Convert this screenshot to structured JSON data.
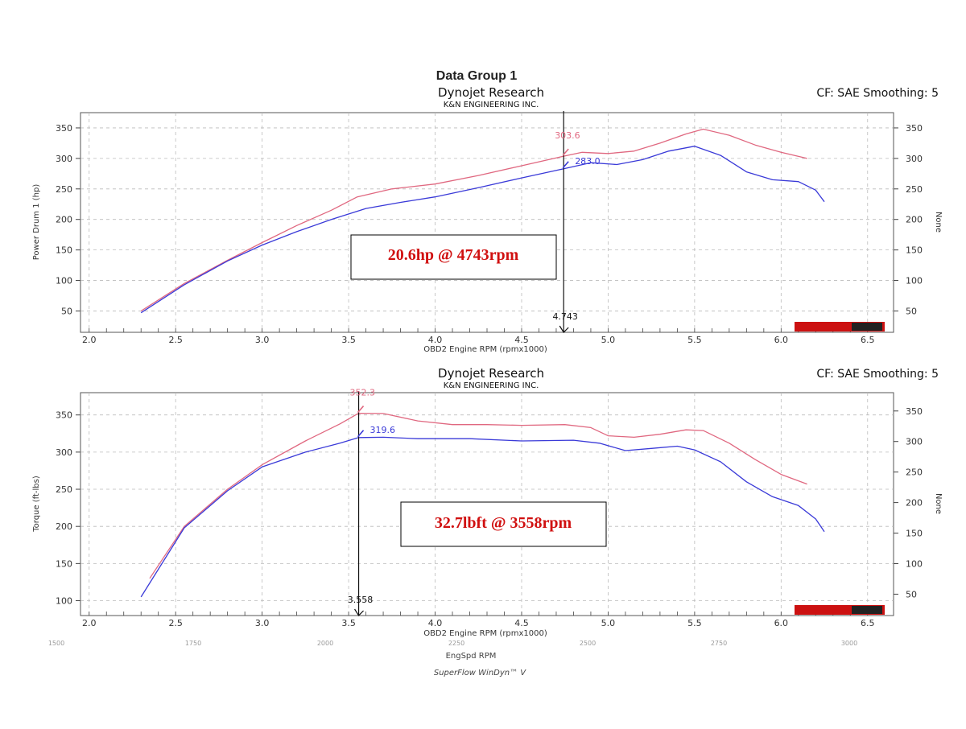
{
  "group_title": "Data Group 1",
  "footer": {
    "engspd_label": "EngSpd RPM",
    "engspd_ticks": [
      "1500",
      "1750",
      "2000",
      "2250",
      "2500",
      "2750",
      "3000"
    ],
    "software": "SuperFlow WinDyn™ V"
  },
  "colors": {
    "run1": "#e06880",
    "run2": "#3a3ad8",
    "marker": "#111111",
    "callout": "#d01010"
  },
  "chart_data": [
    {
      "type": "line",
      "company": "Dynojet Research",
      "subtitle": "K&N ENGINEERING INC.",
      "corner": "CF: SAE Smoothing: 5",
      "ylabel": "Power Drum 1 (hp)",
      "y2label": "None",
      "xlabel": "OBD2 Engine RPM (rpmx1000)",
      "xlim": [
        1.95,
        6.65
      ],
      "ylim": [
        15,
        375
      ],
      "y2lim": [
        15,
        375
      ],
      "xticks": [
        2.0,
        2.5,
        3.0,
        3.5,
        4.0,
        4.5,
        5.0,
        5.5,
        6.0,
        6.5
      ],
      "xtick_labels": [
        "2.0",
        "2.5",
        "3.0",
        "3.5",
        "4.0",
        "4.5",
        "5.0",
        "5.5",
        "6.0",
        "6.5"
      ],
      "yticks": [
        50,
        100,
        150,
        200,
        250,
        300,
        350
      ],
      "ytick_labels": [
        "50",
        "100",
        "150",
        "200",
        "250",
        "300",
        "350"
      ],
      "y2ticks": [
        50,
        100,
        150,
        200,
        250,
        300,
        350
      ],
      "y2tick_labels": [
        "50",
        "100",
        "150",
        "200",
        "250",
        "300",
        "350"
      ],
      "series": [
        {
          "name": "Run 1",
          "color": "#e06880",
          "x": [
            2.3,
            2.55,
            2.8,
            3.0,
            3.2,
            3.4,
            3.55,
            3.75,
            4.0,
            4.25,
            4.5,
            4.743,
            4.85,
            5.0,
            5.15,
            5.3,
            5.45,
            5.55,
            5.7,
            5.85,
            6.0,
            6.15
          ],
          "y": [
            50,
            95,
            133,
            162,
            190,
            215,
            237,
            250,
            258,
            272,
            288,
            303.6,
            310,
            308,
            312,
            325,
            340,
            348,
            338,
            322,
            310,
            300
          ]
        },
        {
          "name": "Run 2",
          "color": "#3a3ad8",
          "x": [
            2.3,
            2.55,
            2.8,
            3.0,
            3.2,
            3.4,
            3.6,
            3.8,
            4.0,
            4.25,
            4.5,
            4.743,
            4.9,
            5.05,
            5.2,
            5.35,
            5.5,
            5.65,
            5.8,
            5.95,
            6.1,
            6.2,
            6.25
          ],
          "y": [
            47,
            93,
            132,
            158,
            180,
            200,
            218,
            228,
            237,
            252,
            268,
            283.0,
            293,
            290,
            298,
            312,
            320,
            305,
            278,
            265,
            262,
            248,
            229
          ]
        }
      ],
      "cursor": {
        "x": 4.743,
        "label": "4.743"
      },
      "marker_labels": [
        {
          "text": "303.6",
          "color": "#e06880",
          "x": 4.743,
          "y": 303.6
        },
        {
          "text": "283.0",
          "color": "#3a3ad8",
          "x": 4.743,
          "y": 283.0
        }
      ],
      "callout": "20.6hp @ 4743rpm"
    },
    {
      "type": "line",
      "company": "Dynojet Research",
      "subtitle": "K&N ENGINEERING INC.",
      "corner": "CF: SAE Smoothing: 5",
      "ylabel": "Torque (ft-lbs)",
      "y2label": "None",
      "xlabel": "OBD2 Engine RPM (rpmx1000)",
      "xlim": [
        1.95,
        6.65
      ],
      "ylim": [
        80,
        380
      ],
      "y2lim": [
        15,
        380
      ],
      "xticks": [
        2.0,
        2.5,
        3.0,
        3.5,
        4.0,
        4.5,
        5.0,
        5.5,
        6.0,
        6.5
      ],
      "xtick_labels": [
        "2.0",
        "2.5",
        "3.0",
        "3.5",
        "4.0",
        "4.5",
        "5.0",
        "5.5",
        "6.0",
        "6.5"
      ],
      "yticks": [
        100,
        150,
        200,
        250,
        300,
        350
      ],
      "ytick_labels": [
        "100",
        "150",
        "200",
        "250",
        "300",
        "350"
      ],
      "y2ticks": [
        50,
        100,
        150,
        200,
        250,
        300,
        350
      ],
      "y2tick_labels": [
        "50",
        "100",
        "150",
        "200",
        "250",
        "300",
        "350"
      ],
      "series": [
        {
          "name": "Run 1",
          "color": "#e06880",
          "x": [
            2.35,
            2.55,
            2.8,
            3.0,
            3.25,
            3.45,
            3.558,
            3.7,
            3.9,
            4.1,
            4.3,
            4.5,
            4.75,
            4.9,
            5.0,
            5.15,
            5.3,
            5.45,
            5.55,
            5.7,
            5.85,
            6.0,
            6.15
          ],
          "y": [
            130,
            200,
            250,
            283,
            315,
            338,
            352.3,
            352,
            342,
            337,
            337,
            336,
            337,
            333,
            322,
            320,
            324,
            330,
            329,
            312,
            290,
            270,
            257
          ]
        },
        {
          "name": "Run 2",
          "color": "#3a3ad8",
          "x": [
            2.3,
            2.55,
            2.8,
            3.0,
            3.25,
            3.45,
            3.558,
            3.7,
            3.9,
            4.2,
            4.5,
            4.8,
            4.95,
            5.1,
            5.25,
            5.4,
            5.5,
            5.65,
            5.8,
            5.95,
            6.1,
            6.2,
            6.25
          ],
          "y": [
            105,
            198,
            248,
            280,
            300,
            312,
            319.6,
            320,
            318,
            318,
            315,
            316,
            312,
            302,
            305,
            308,
            303,
            287,
            260,
            240,
            228,
            210,
            193
          ]
        }
      ],
      "cursor": {
        "x": 3.558,
        "label": "3.558"
      },
      "marker_labels": [
        {
          "text": "352.3",
          "color": "#e06880",
          "x": 3.558,
          "y": 352.3
        },
        {
          "text": "319.6",
          "color": "#3a3ad8",
          "x": 3.558,
          "y": 319.6
        }
      ],
      "callout": "32.7lbft @ 3558rpm"
    }
  ]
}
